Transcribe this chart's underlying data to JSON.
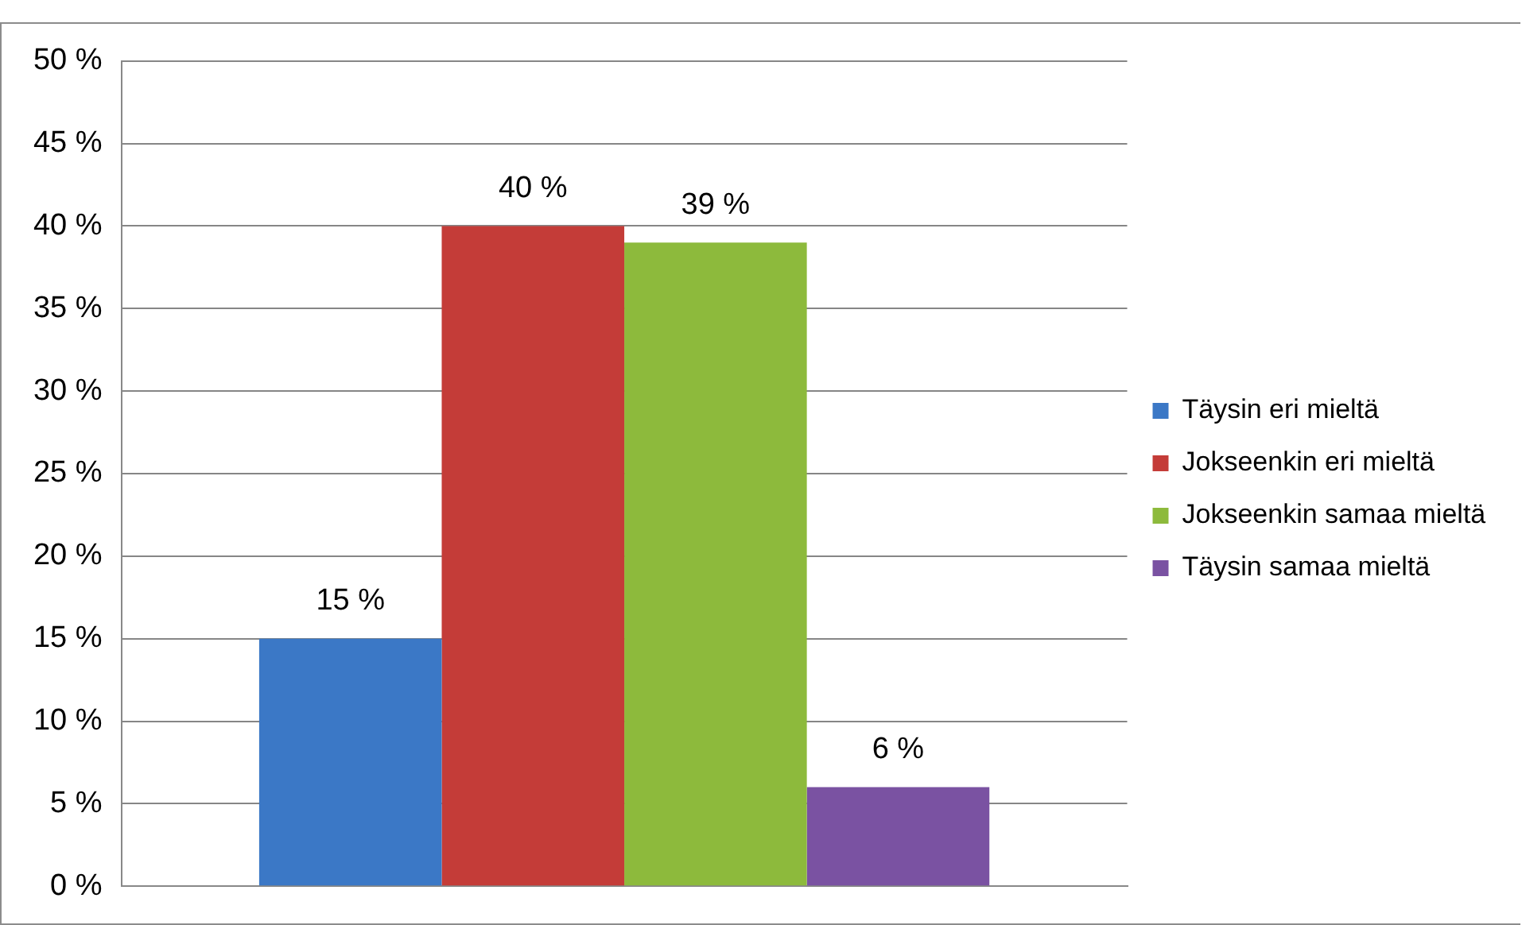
{
  "chart_data": {
    "type": "bar",
    "categories": [
      null
    ],
    "series": [
      {
        "name": "Täysin eri mieltä",
        "color": "#3b78c6",
        "values": [
          15
        ],
        "value_labels": [
          "15 %"
        ]
      },
      {
        "name": "Jokseenkin eri mieltä",
        "color": "#c43c38",
        "values": [
          40
        ],
        "value_labels": [
          "40 %"
        ]
      },
      {
        "name": "Jokseenkin samaa mieltä",
        "color": "#8dba3c",
        "values": [
          39
        ],
        "value_labels": [
          "39 %"
        ]
      },
      {
        "name": "Täysin samaa mieltä",
        "color": "#7a52a2",
        "values": [
          6
        ],
        "value_labels": [
          "6 %"
        ]
      }
    ],
    "ylim": [
      0,
      50
    ],
    "yticks": [
      {
        "value": 0,
        "label": "0 %"
      },
      {
        "value": 5,
        "label": "5 %"
      },
      {
        "value": 10,
        "label": "10 %"
      },
      {
        "value": 15,
        "label": "15 %"
      },
      {
        "value": 20,
        "label": "20 %"
      },
      {
        "value": 25,
        "label": "25 %"
      },
      {
        "value": 30,
        "label": "30 %"
      },
      {
        "value": 35,
        "label": "35 %"
      },
      {
        "value": 40,
        "label": "40 %"
      },
      {
        "value": 45,
        "label": "45 %"
      },
      {
        "value": 50,
        "label": "50 %"
      }
    ],
    "grid": "y",
    "legend": "right"
  }
}
